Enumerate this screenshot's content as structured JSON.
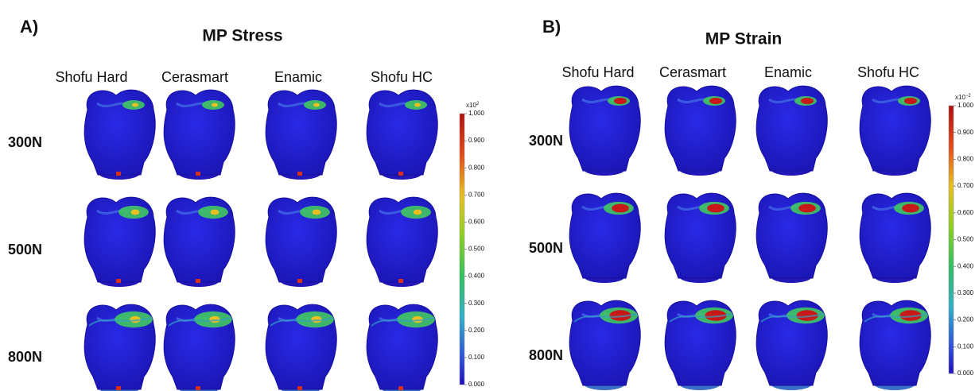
{
  "panels": [
    {
      "label": "A)",
      "title": "MP Stress",
      "columns": [
        "Shofu Hard",
        "Cerasmart",
        "Enamic",
        "Shofu HC"
      ],
      "rows": [
        "300N",
        "500N",
        "800N"
      ],
      "colorbar": {
        "multiplier": "x10",
        "exponent": "2",
        "ticks": [
          "1.000",
          "0.900",
          "0.800",
          "0.700",
          "0.600",
          "0.500",
          "0.400",
          "0.300",
          "0.200",
          "0.100",
          "0.000"
        ]
      }
    },
    {
      "label": "B)",
      "title": "MP Strain",
      "columns": [
        "Shofu Hard",
        "Cerasmart",
        "Enamic",
        "Shofu HC"
      ],
      "rows": [
        "300N",
        "500N",
        "800N"
      ],
      "colorbar": {
        "multiplier": "x10",
        "exponent": "−2",
        "ticks": [
          "1.000",
          "0.900",
          "0.800",
          "0.700",
          "0.600",
          "0.500",
          "0.400",
          "0.300",
          "0.200",
          "0.100",
          "0.000"
        ]
      }
    }
  ]
}
